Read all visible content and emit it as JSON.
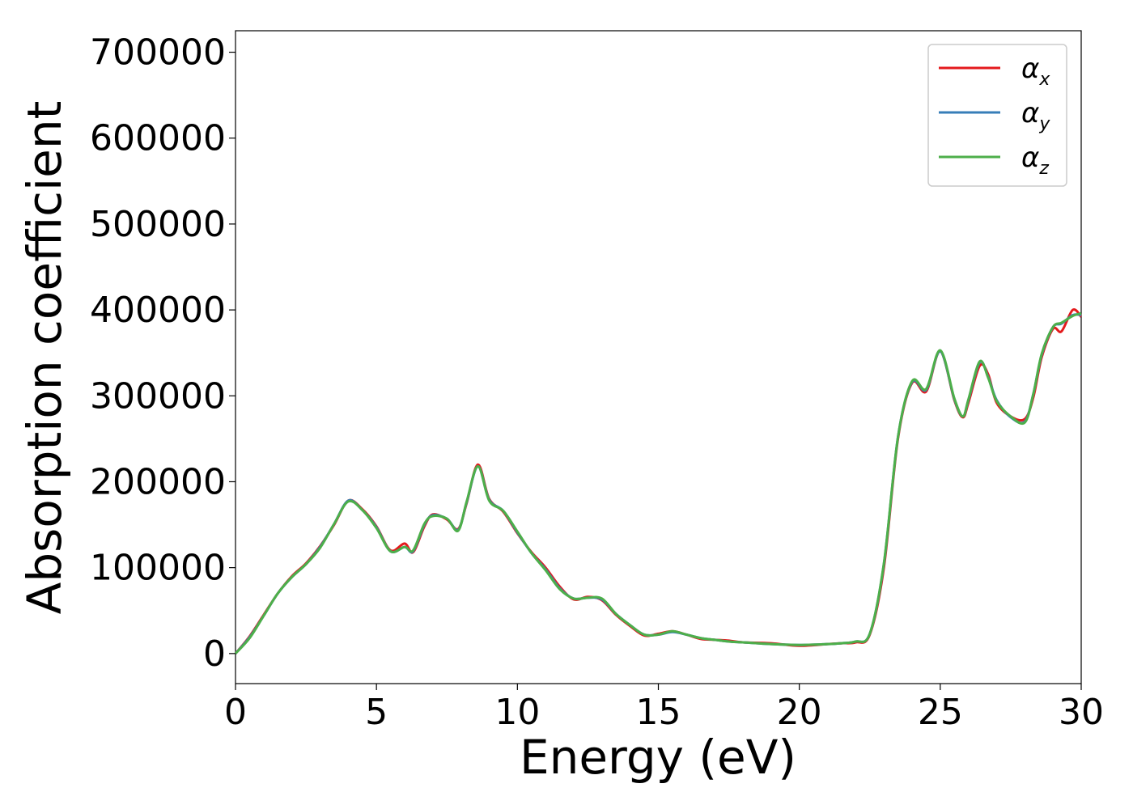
{
  "chart_data": {
    "type": "line",
    "title": "",
    "xlabel": "Energy (eV)",
    "ylabel": "Absorption coefficient",
    "xlim": [
      0,
      30
    ],
    "ylim": [
      -35000,
      725000
    ],
    "xticks": [
      0,
      5,
      10,
      15,
      20,
      25,
      30
    ],
    "yticks": [
      0,
      100000,
      200000,
      300000,
      400000,
      500000,
      600000,
      700000
    ],
    "grid": false,
    "legend_position": "top-right",
    "series": [
      {
        "name": "α_x",
        "legend_base": "α",
        "legend_sub": "x",
        "color": "#e41a1c",
        "points": [
          [
            0,
            0
          ],
          [
            0.5,
            20000
          ],
          [
            1,
            45000
          ],
          [
            1.5,
            70000
          ],
          [
            2,
            90000
          ],
          [
            2.5,
            105000
          ],
          [
            3,
            125000
          ],
          [
            3.5,
            150000
          ],
          [
            4,
            178000
          ],
          [
            4.5,
            168000
          ],
          [
            5,
            148000
          ],
          [
            5.5,
            120000
          ],
          [
            6,
            128000
          ],
          [
            6.3,
            118000
          ],
          [
            6.7,
            148000
          ],
          [
            7,
            162000
          ],
          [
            7.5,
            156000
          ],
          [
            7.9,
            145000
          ],
          [
            8.2,
            175000
          ],
          [
            8.6,
            220000
          ],
          [
            9,
            180000
          ],
          [
            9.5,
            165000
          ],
          [
            10,
            140000
          ],
          [
            10.5,
            118000
          ],
          [
            11,
            100000
          ],
          [
            11.5,
            78000
          ],
          [
            12,
            63000
          ],
          [
            12.5,
            66000
          ],
          [
            13,
            62000
          ],
          [
            13.5,
            45000
          ],
          [
            14,
            32000
          ],
          [
            14.5,
            21000
          ],
          [
            15,
            23000
          ],
          [
            15.5,
            26000
          ],
          [
            16,
            22000
          ],
          [
            16.5,
            17000
          ],
          [
            17,
            16000
          ],
          [
            17.5,
            15000
          ],
          [
            18,
            13000
          ],
          [
            19,
            12000
          ],
          [
            20,
            9000
          ],
          [
            21,
            11000
          ],
          [
            21.5,
            12000
          ],
          [
            22,
            13000
          ],
          [
            22.5,
            22000
          ],
          [
            23,
            100000
          ],
          [
            23.5,
            250000
          ],
          [
            24,
            315000
          ],
          [
            24.5,
            305000
          ],
          [
            25,
            352000
          ],
          [
            25.5,
            295000
          ],
          [
            25.8,
            275000
          ],
          [
            26,
            292000
          ],
          [
            26.4,
            335000
          ],
          [
            26.7,
            325000
          ],
          [
            27,
            292000
          ],
          [
            27.5,
            276000
          ],
          [
            28,
            273000
          ],
          [
            28.3,
            298000
          ],
          [
            28.6,
            345000
          ],
          [
            29,
            378000
          ],
          [
            29.3,
            375000
          ],
          [
            29.7,
            400000
          ],
          [
            30,
            392000
          ]
        ]
      },
      {
        "name": "α_y",
        "legend_base": "α",
        "legend_sub": "y",
        "color": "#377eb8",
        "points": [
          [
            0,
            0
          ],
          [
            0.5,
            19000
          ],
          [
            1,
            44000
          ],
          [
            1.5,
            70000
          ],
          [
            2,
            89000
          ],
          [
            2.5,
            104000
          ],
          [
            3,
            124000
          ],
          [
            3.5,
            151000
          ],
          [
            4,
            178000
          ],
          [
            4.5,
            167000
          ],
          [
            5,
            147000
          ],
          [
            5.5,
            119000
          ],
          [
            6,
            124000
          ],
          [
            6.3,
            119000
          ],
          [
            6.7,
            150000
          ],
          [
            7,
            161000
          ],
          [
            7.5,
            157000
          ],
          [
            7.9,
            144000
          ],
          [
            8.2,
            176000
          ],
          [
            8.6,
            218000
          ],
          [
            9,
            179000
          ],
          [
            9.5,
            166000
          ],
          [
            10,
            141000
          ],
          [
            10.5,
            117000
          ],
          [
            11,
            98000
          ],
          [
            11.5,
            76000
          ],
          [
            12,
            64000
          ],
          [
            12.5,
            65000
          ],
          [
            13,
            63000
          ],
          [
            13.5,
            46000
          ],
          [
            14,
            33000
          ],
          [
            14.5,
            22000
          ],
          [
            15,
            22000
          ],
          [
            15.5,
            25000
          ],
          [
            16,
            22000
          ],
          [
            16.5,
            18000
          ],
          [
            17,
            16000
          ],
          [
            17.5,
            14000
          ],
          [
            18,
            13000
          ],
          [
            19,
            11000
          ],
          [
            20,
            10000
          ],
          [
            21,
            11000
          ],
          [
            21.5,
            12000
          ],
          [
            22,
            14000
          ],
          [
            22.5,
            23000
          ],
          [
            23,
            104000
          ],
          [
            23.5,
            252000
          ],
          [
            24,
            316000
          ],
          [
            24.5,
            307000
          ],
          [
            25,
            352000
          ],
          [
            25.5,
            296000
          ],
          [
            25.8,
            276000
          ],
          [
            26,
            295000
          ],
          [
            26.4,
            339000
          ],
          [
            26.7,
            322000
          ],
          [
            27,
            295000
          ],
          [
            27.5,
            275000
          ],
          [
            28,
            270000
          ],
          [
            28.3,
            302000
          ],
          [
            28.6,
            348000
          ],
          [
            29,
            380000
          ],
          [
            29.3,
            384000
          ],
          [
            29.7,
            394000
          ],
          [
            30,
            394000
          ]
        ]
      },
      {
        "name": "α_z",
        "legend_base": "α",
        "legend_sub": "z",
        "color": "#4daf4a",
        "points": [
          [
            0,
            0
          ],
          [
            0.5,
            18000
          ],
          [
            1,
            44000
          ],
          [
            1.5,
            70000
          ],
          [
            2,
            89000
          ],
          [
            2.5,
            104000
          ],
          [
            3,
            123000
          ],
          [
            3.5,
            151000
          ],
          [
            4,
            177000
          ],
          [
            4.5,
            167000
          ],
          [
            5,
            146000
          ],
          [
            5.5,
            119000
          ],
          [
            6,
            124000
          ],
          [
            6.3,
            120000
          ],
          [
            6.7,
            151000
          ],
          [
            7,
            160000
          ],
          [
            7.5,
            157000
          ],
          [
            7.9,
            143000
          ],
          [
            8.2,
            177000
          ],
          [
            8.6,
            218000
          ],
          [
            9,
            178000
          ],
          [
            9.5,
            166000
          ],
          [
            10,
            142000
          ],
          [
            10.5,
            117000
          ],
          [
            11,
            97000
          ],
          [
            11.5,
            75000
          ],
          [
            12,
            64000
          ],
          [
            12.5,
            65000
          ],
          [
            13,
            64000
          ],
          [
            13.5,
            46000
          ],
          [
            14,
            33000
          ],
          [
            14.5,
            22000
          ],
          [
            15,
            22000
          ],
          [
            15.5,
            26000
          ],
          [
            16,
            22000
          ],
          [
            16.5,
            18000
          ],
          [
            17,
            16000
          ],
          [
            17.5,
            14000
          ],
          [
            18,
            13000
          ],
          [
            19,
            11000
          ],
          [
            20,
            10000
          ],
          [
            21,
            11000
          ],
          [
            21.5,
            12000
          ],
          [
            22,
            14000
          ],
          [
            22.5,
            23000
          ],
          [
            23,
            105000
          ],
          [
            23.5,
            252000
          ],
          [
            24,
            317000
          ],
          [
            24.5,
            308000
          ],
          [
            25,
            353000
          ],
          [
            25.5,
            297000
          ],
          [
            25.8,
            276000
          ],
          [
            26,
            296000
          ],
          [
            26.4,
            340000
          ],
          [
            26.7,
            321000
          ],
          [
            27,
            294000
          ],
          [
            27.5,
            276000
          ],
          [
            28,
            269000
          ],
          [
            28.3,
            302000
          ],
          [
            28.6,
            349000
          ],
          [
            29,
            380000
          ],
          [
            29.3,
            385000
          ],
          [
            29.7,
            393000
          ],
          [
            30,
            396000
          ]
        ]
      }
    ]
  }
}
